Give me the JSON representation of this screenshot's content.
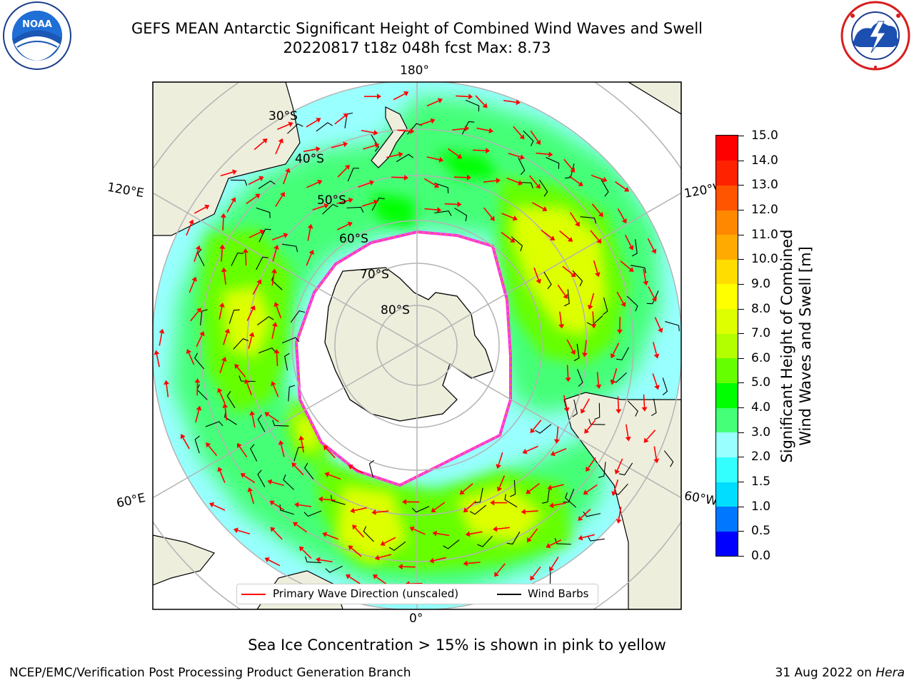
{
  "header": {
    "title_line1": "GEFS MEAN Antarctic Significant Height of Combined Wind Waves and Swell",
    "title_line2": "20220817 t18z 048h fcst   Max: 8.73"
  },
  "logos": {
    "noaa_text": "NOAA",
    "noaa_ring_text": "NATIONAL OCEANIC AND ATMOSPHERIC ADMINISTRATION · U.S. DEPARTMENT OF COMMERCE",
    "nws_ring_text": "NATIONAL WEATHER SERVICE"
  },
  "map": {
    "projection": "south-polar stereographic",
    "longitude_labels": {
      "top": "180°",
      "bottom": "0°",
      "upper_left": "120°E",
      "lower_left": "60°E",
      "upper_right": "120°W",
      "lower_right": "60°W"
    },
    "latitude_labels": [
      "30°S",
      "40°S",
      "50°S",
      "60°S",
      "70°S",
      "80°S"
    ],
    "colors": {
      "ocean_base": "#99ffff",
      "land": "#eeeedd",
      "antarctic_ice": "#ffffff",
      "sea_ice_edge": "#ff33dd",
      "grid": "#b3b3b3",
      "wave_arrow": "#ff0000",
      "wind_barb": "#000000"
    }
  },
  "colorbar": {
    "ticks": [
      "15.0",
      "14.0",
      "13.0",
      "12.0",
      "11.0",
      "10.0",
      "9.0",
      "8.0",
      "7.0",
      "6.0",
      "5.0",
      "4.0",
      "3.0",
      "2.0",
      "1.5",
      "1.0",
      "0.5",
      "0.0"
    ],
    "colors": [
      "#0000ff",
      "#0077ff",
      "#00ddff",
      "#33ffff",
      "#99ffff",
      "#44ff77",
      "#00ff00",
      "#66ff00",
      "#b3ff00",
      "#ddff00",
      "#ffff00",
      "#ffdd00",
      "#ffaa00",
      "#ff8800",
      "#ff5500",
      "#ff2200",
      "#ff0000"
    ],
    "label_line1": "Significant Height of Combined",
    "label_line2": "Wind Waves and Swell [m]"
  },
  "legend": {
    "wave_label": "Primary Wave Direction (unscaled)",
    "wind_label": "Wind Barbs"
  },
  "subtitle": "Sea Ice Concentration > 15% is shown in pink to yellow",
  "footer": {
    "left": "NCEP/EMC/Verification Post Processing Product Generation Branch",
    "date": "31 Aug 2022 on ",
    "machine": "Hera"
  }
}
